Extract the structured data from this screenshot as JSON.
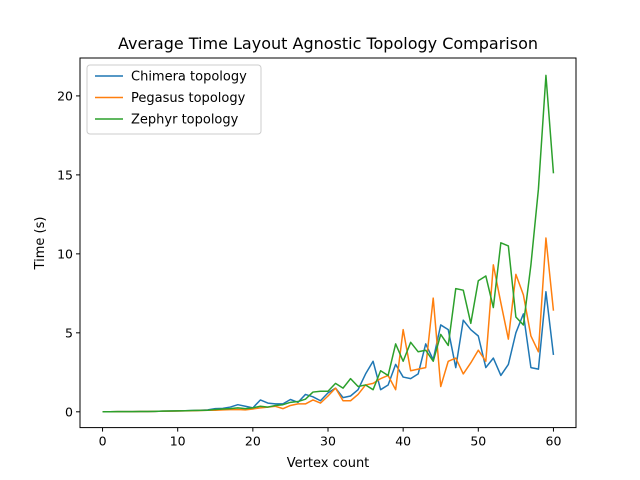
{
  "chart_data": {
    "type": "line",
    "title": "Average Time Layout Agnostic Topology Comparison",
    "xlabel": "Vertex count",
    "ylabel": "Time (s)",
    "xlim": [
      -3,
      63
    ],
    "ylim": [
      -1.0,
      22.4
    ],
    "xticks": [
      0,
      10,
      20,
      30,
      40,
      50,
      60
    ],
    "yticks": [
      0,
      5,
      10,
      15,
      20
    ],
    "legend_position": "upper-left",
    "grid": false,
    "x": [
      0,
      1,
      2,
      3,
      4,
      5,
      6,
      7,
      8,
      9,
      10,
      11,
      12,
      13,
      14,
      15,
      16,
      17,
      18,
      19,
      20,
      21,
      22,
      23,
      24,
      25,
      26,
      27,
      28,
      29,
      30,
      31,
      32,
      33,
      34,
      35,
      36,
      37,
      38,
      39,
      40,
      41,
      42,
      43,
      44,
      45,
      46,
      47,
      48,
      49,
      50,
      51,
      52,
      53,
      54,
      55,
      56,
      57,
      58,
      59,
      60
    ],
    "series": [
      {
        "name": "Chimera topology",
        "color": "#1f77b4",
        "values": [
          0,
          0,
          0.01,
          0.01,
          0.01,
          0.02,
          0.02,
          0.03,
          0.04,
          0.05,
          0.06,
          0.07,
          0.08,
          0.1,
          0.12,
          0.2,
          0.22,
          0.3,
          0.45,
          0.35,
          0.25,
          0.75,
          0.55,
          0.5,
          0.5,
          0.78,
          0.6,
          1.1,
          0.95,
          0.7,
          1.2,
          1.5,
          0.9,
          1.0,
          1.4,
          2.4,
          3.2,
          1.4,
          1.7,
          3.0,
          2.2,
          2.1,
          2.4,
          4.3,
          3.3,
          5.5,
          5.2,
          2.8,
          5.8,
          5.2,
          4.8,
          2.8,
          3.4,
          2.3,
          3.0,
          5.0,
          6.2,
          2.8,
          2.7,
          7.6,
          3.6
        ]
      },
      {
        "name": "Pegasus topology",
        "color": "#ff7f0e",
        "values": [
          0,
          0,
          0.01,
          0.01,
          0.01,
          0.02,
          0.02,
          0.03,
          0.04,
          0.04,
          0.05,
          0.06,
          0.07,
          0.08,
          0.1,
          0.1,
          0.12,
          0.14,
          0.15,
          0.12,
          0.18,
          0.25,
          0.3,
          0.35,
          0.2,
          0.4,
          0.5,
          0.5,
          0.75,
          0.55,
          1.0,
          1.5,
          0.7,
          0.7,
          1.1,
          1.7,
          1.8,
          2.1,
          2.3,
          1.4,
          5.2,
          2.6,
          2.7,
          2.8,
          7.2,
          1.6,
          3.2,
          3.4,
          2.4,
          3.1,
          3.9,
          3.2,
          9.3,
          6.9,
          4.6,
          8.7,
          7.4,
          4.8,
          3.8,
          11.0,
          6.4
        ]
      },
      {
        "name": "Zephyr topology",
        "color": "#2ca02c",
        "values": [
          0,
          0,
          0.01,
          0.01,
          0.01,
          0.02,
          0.02,
          0.03,
          0.04,
          0.05,
          0.06,
          0.07,
          0.08,
          0.09,
          0.1,
          0.15,
          0.18,
          0.2,
          0.25,
          0.2,
          0.25,
          0.35,
          0.3,
          0.4,
          0.45,
          0.6,
          0.65,
          0.8,
          1.25,
          1.3,
          1.3,
          1.8,
          1.5,
          2.1,
          1.6,
          1.7,
          1.4,
          2.6,
          2.3,
          4.3,
          3.2,
          4.4,
          3.8,
          3.9,
          3.2,
          4.9,
          4.2,
          7.8,
          7.7,
          5.6,
          8.3,
          8.6,
          6.6,
          10.7,
          10.5,
          6.0,
          5.5,
          9.3,
          14.1,
          21.3,
          15.1
        ]
      }
    ]
  }
}
